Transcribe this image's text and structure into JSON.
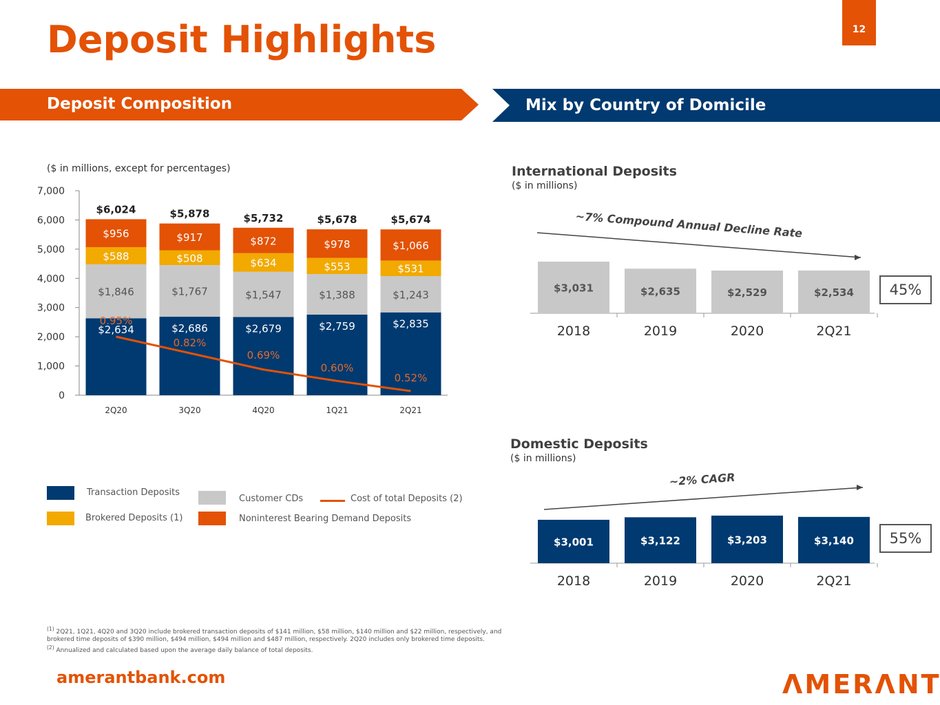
{
  "title": "Deposit Highlights",
  "page_number": "12",
  "banners": {
    "left": "Deposit Composition",
    "right": "Mix by Country of Domicile"
  },
  "website": "amerantbank.com",
  "logo": "AMERANT",
  "colors": {
    "orange": "#e35205",
    "navy": "#003a70",
    "gold": "#f2a900",
    "gray": "#c8c8c8",
    "line": "#e35205"
  },
  "chart_data": [
    {
      "type": "bar",
      "stacked": true,
      "subtitle": "($ in millions, except for percentages)",
      "categories": [
        "2Q20",
        "3Q20",
        "4Q20",
        "1Q21",
        "2Q21"
      ],
      "ylim": [
        0,
        7000
      ],
      "yticks": [
        "0",
        "1,000",
        "2,000",
        "3,000",
        "4,000",
        "5,000",
        "6,000",
        "7,000"
      ],
      "totals": [
        "$6,024",
        "$5,878",
        "$5,732",
        "$5,678",
        "$5,674"
      ],
      "series": [
        {
          "name": "Transaction Deposits",
          "color": "#003a70",
          "values": [
            2634,
            2686,
            2679,
            2759,
            2835
          ],
          "labels": [
            "$2,634",
            "$2,686",
            "$2,679",
            "$2,759",
            "$2,835"
          ]
        },
        {
          "name": "Customer CDs",
          "color": "#c8c8c8",
          "values": [
            1846,
            1767,
            1547,
            1388,
            1243
          ],
          "labels": [
            "$1,846",
            "$1,767",
            "$1,547",
            "$1,388",
            "$1,243"
          ]
        },
        {
          "name": "Brokered Deposits",
          "footnote": "(1)",
          "color": "#f2a900",
          "values": [
            588,
            508,
            634,
            553,
            531
          ],
          "labels": [
            "$588",
            "$508",
            "$634",
            "$553",
            "$531"
          ]
        },
        {
          "name": "Noninterest Bearing Demand Deposits",
          "color": "#e35205",
          "values": [
            956,
            917,
            872,
            978,
            1066
          ],
          "labels": [
            "$956",
            "$917",
            "$872",
            "$978",
            "$1,066"
          ]
        }
      ],
      "line": {
        "name": "Cost of total Deposits",
        "footnote": "(2)",
        "type": "line",
        "values": [
          0.95,
          0.82,
          0.69,
          0.6,
          0.52
        ],
        "labels": [
          "0.95%",
          "0.82%",
          "0.69%",
          "0.60%",
          "0.52%"
        ]
      }
    },
    {
      "type": "bar",
      "title": "International Deposits",
      "subtitle": "($ in millions)",
      "annotation": "~7% Compound Annual Decline Rate",
      "trend": "decline",
      "categories": [
        "2018",
        "2019",
        "2020",
        "2Q21"
      ],
      "values": [
        3031,
        2635,
        2529,
        2534
      ],
      "labels": [
        "$3,031",
        "$2,635",
        "$2,529",
        "$2,534"
      ],
      "color": "#c8c8c8",
      "share": "45%"
    },
    {
      "type": "bar",
      "title": "Domestic Deposits",
      "subtitle": "($ in millions)",
      "annotation": "~2% CAGR",
      "trend": "growth",
      "categories": [
        "2018",
        "2019",
        "2020",
        "2Q21"
      ],
      "values": [
        3001,
        3122,
        3203,
        3140
      ],
      "labels": [
        "$3,001",
        "$3,122",
        "$3,203",
        "$3,140"
      ],
      "color": "#003a70",
      "share": "55%"
    }
  ],
  "footnotes": {
    "f1_mark": "(1)",
    "f1": "2Q21, 1Q21, 4Q20 and 3Q20 include brokered transaction deposits of $141 million, $58 million, $140 million and $22 million, respectively, and brokered time deposits of $390 million, $494 million, $494 million and $487 million, respectively. 2Q20 includes only brokered time deposits.",
    "f2_mark": "(2)",
    "f2": "Annualized and calculated based upon the average daily balance of total deposits."
  }
}
